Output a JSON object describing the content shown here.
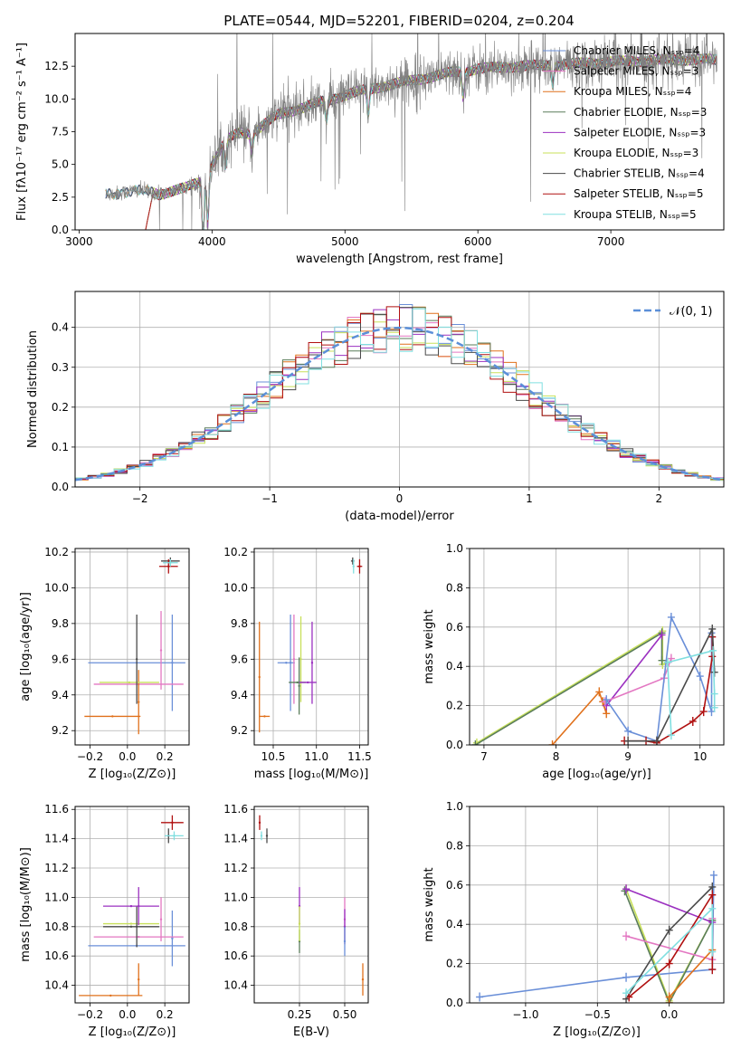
{
  "figure_title": "PLATE=0544, MJD=52201, FIBERID=0204, z=0.204",
  "colors": {
    "Chabrier MILES": "#6a8fd8",
    "Salpeter MILES": "#e377c2",
    "Kroupa MILES": "#e0701b",
    "Chabrier ELODIE": "#5a7d5a",
    "Salpeter ELODIE": "#9b30c0",
    "Kroupa ELODIE": "#c8e05a",
    "Chabrier STELIB": "#4a4a4a",
    "Salpeter STELIB": "#b01010",
    "Kroupa STELIB": "#80dfe0",
    "data": "#808080",
    "gauss": "#5b8fd8",
    "grid": "#b0b0b0"
  },
  "chart_data": [
    {
      "type": "line",
      "id": "spectrum",
      "title": "PLATE=0544, MJD=52201, FIBERID=0204, z=0.204",
      "xlabel": "wavelength [Angstrom, rest frame]",
      "ylabel": "Flux [fλ10⁻¹⁷ erg cm⁻² s⁻¹ A⁻¹]",
      "xlim": [
        2970,
        7850
      ],
      "ylim": [
        0,
        15
      ],
      "xticks": [
        3000,
        4000,
        5000,
        6000,
        7000
      ],
      "yticks": [
        0.0,
        2.5,
        5.0,
        7.5,
        10.0,
        12.5
      ],
      "legend_position": "top-right",
      "legend": [
        "Chabrier MILES, N_SSP=4",
        "Salpeter MILES, N_SSP=3",
        "Kroupa MILES, N_SSP=4",
        "Chabrier ELODIE, N_SSP=3",
        "Salpeter ELODIE, N_SSP=3",
        "Kroupa ELODIE, N_SSP=3",
        "Chabrier STELIB, N_SSP=4",
        "Salpeter STELIB, N_SSP=5",
        "Kroupa STELIB, N_SSP=5"
      ],
      "continuum": {
        "x": [
          3200,
          3300,
          3400,
          3500,
          3600,
          3700,
          3800,
          3900,
          4000,
          4100,
          4200,
          4300,
          4500,
          4700,
          5000,
          5200,
          5500,
          5800,
          6000,
          6300,
          6600,
          6900,
          7200,
          7500,
          7800
        ],
        "y": [
          2.7,
          2.8,
          3.0,
          3.0,
          2.7,
          3.0,
          3.2,
          3.6,
          5.0,
          6.8,
          7.4,
          7.4,
          8.8,
          9.4,
          10.3,
          10.8,
          11.4,
          12.0,
          12.3,
          12.5,
          12.6,
          12.8,
          12.9,
          13.0,
          13.0
        ]
      },
      "model_start": [
        3200,
        3500,
        3200,
        3500,
        3500,
        3500,
        3200,
        3500,
        3200
      ]
    },
    {
      "type": "histogram",
      "id": "residuals",
      "xlabel": "(data-model)/error",
      "ylabel": "Normed distribution",
      "xlim": [
        -2.5,
        2.5
      ],
      "ylim": [
        0,
        0.49
      ],
      "xticks": [
        -2,
        -1,
        0,
        1,
        2
      ],
      "yticks": [
        0.0,
        0.1,
        0.2,
        0.3,
        0.4
      ],
      "legend": [
        "𝒩(0, 1)"
      ],
      "legend_position": "top-right",
      "bin_width": 0.1,
      "bin_start": -2.5,
      "gaussian": {
        "mean": 0,
        "sigma": 1
      }
    },
    {
      "type": "errorbar",
      "id": "age_vs_Z",
      "xlabel": "Z [log₁₀(Z/Z⊙)]",
      "ylabel": "age  [log₁₀(age/yr)]",
      "xlim": [
        -0.28,
        0.33
      ],
      "ylim": [
        9.12,
        10.22
      ],
      "xticks": [
        -0.2,
        0.0,
        0.2
      ],
      "yticks": [
        9.2,
        9.4,
        9.6,
        9.8,
        10.0,
        10.2
      ],
      "points": [
        {
          "model": "Chabrier MILES",
          "x": 0.05,
          "xerr": 0.26,
          "y": 9.58,
          "yerr": 0.0
        },
        {
          "model": "Chabrier MILES",
          "x": 0.24,
          "xerr": 0.0,
          "y": 9.58,
          "yerr": 0.27
        },
        {
          "model": "Salpeter MILES",
          "x": 0.06,
          "xerr": 0.24,
          "y": 9.46,
          "yerr": 0.0
        },
        {
          "model": "Salpeter MILES",
          "x": 0.18,
          "xerr": 0.0,
          "y": 9.65,
          "yerr": 0.22
        },
        {
          "model": "Kroupa MILES",
          "x": -0.08,
          "xerr": 0.15,
          "y": 9.28,
          "yerr": 0.0
        },
        {
          "model": "Kroupa MILES",
          "x": 0.06,
          "xerr": 0.0,
          "y": 9.36,
          "yerr": 0.18
        },
        {
          "model": "Kroupa ELODIE",
          "x": 0.01,
          "xerr": 0.16,
          "y": 9.47,
          "yerr": 0.0
        },
        {
          "model": "Chabrier STELIB",
          "x": 0.05,
          "xerr": 0.0,
          "y": 9.6,
          "yerr": 0.25
        },
        {
          "model": "Chabrier STELIB",
          "x": 0.23,
          "xerr": 0.05,
          "y": 10.15,
          "yerr": 0.02
        },
        {
          "model": "Salpeter STELIB",
          "x": 0.22,
          "xerr": 0.05,
          "y": 10.12,
          "yerr": 0.04
        },
        {
          "model": "Kroupa STELIB",
          "x": 0.23,
          "xerr": 0.04,
          "y": 10.14,
          "yerr": 0.02
        }
      ]
    },
    {
      "type": "errorbar",
      "id": "age_vs_mass",
      "xlabel": "mass [log₁₀(M/M⊙)]",
      "ylabel": "",
      "xlim": [
        10.28,
        11.6
      ],
      "ylim": [
        9.12,
        10.22
      ],
      "xticks": [
        10.5,
        11.0,
        11.5
      ],
      "yticks": [
        9.2,
        9.4,
        9.6,
        9.8,
        10.0,
        10.2
      ],
      "points": [
        {
          "model": "Kroupa MILES",
          "x": 10.34,
          "xerr": 0.0,
          "y": 9.5,
          "yerr": 0.31
        },
        {
          "model": "Kroupa MILES",
          "x": 10.4,
          "xerr": 0.06,
          "y": 9.28,
          "yerr": 0.0
        },
        {
          "model": "Chabrier MILES",
          "x": 10.7,
          "xerr": 0.0,
          "y": 9.58,
          "yerr": 0.27
        },
        {
          "model": "Chabrier MILES",
          "x": 10.65,
          "xerr": 0.1,
          "y": 9.58,
          "yerr": 0.0
        },
        {
          "model": "Salpeter MILES",
          "x": 10.74,
          "xerr": 0.0,
          "y": 9.6,
          "yerr": 0.25
        },
        {
          "model": "Kroupa ELODIE",
          "x": 10.82,
          "xerr": 0.0,
          "y": 9.6,
          "yerr": 0.24
        },
        {
          "model": "Chabrier ELODIE",
          "x": 10.8,
          "xerr": 0.0,
          "y": 9.45,
          "yerr": 0.16
        },
        {
          "model": "Chabrier ELODIE",
          "x": 10.78,
          "xerr": 0.1,
          "y": 9.47,
          "yerr": 0.0
        },
        {
          "model": "Salpeter ELODIE",
          "x": 10.95,
          "xerr": 0.0,
          "y": 9.58,
          "yerr": 0.23
        },
        {
          "model": "Salpeter ELODIE",
          "x": 10.9,
          "xerr": 0.1,
          "y": 9.47,
          "yerr": 0.0
        },
        {
          "model": "Chabrier STELIB",
          "x": 11.42,
          "xerr": 0.02,
          "y": 10.15,
          "yerr": 0.02
        },
        {
          "model": "Kroupa STELIB",
          "x": 11.43,
          "xerr": 0.0,
          "y": 10.12,
          "yerr": 0.04
        },
        {
          "model": "Salpeter STELIB",
          "x": 11.5,
          "xerr": 0.03,
          "y": 10.12,
          "yerr": 0.04
        }
      ]
    },
    {
      "type": "line",
      "id": "massweight_vs_age",
      "xlabel": "age  [log₁₀(age/yr)]",
      "ylabel": "mass weight",
      "xlim": [
        6.8,
        10.33
      ],
      "ylim": [
        0,
        1
      ],
      "xticks": [
        7,
        8,
        9,
        10
      ],
      "yticks": [
        0.0,
        0.2,
        0.4,
        0.6,
        0.8,
        1.0
      ],
      "series": [
        {
          "model": "Kroupa ELODIE",
          "x": [
            6.9,
            9.48,
            9.48,
            9.55
          ],
          "y": [
            0.01,
            0.58,
            0.41,
            0.42
          ]
        },
        {
          "model": "Chabrier ELODIE",
          "x": [
            6.88,
            9.47,
            9.47
          ],
          "y": [
            0.0,
            0.57,
            0.43
          ]
        },
        {
          "model": "Kroupa MILES",
          "x": [
            7.95,
            8.6,
            8.7,
            8.65
          ],
          "y": [
            0.0,
            0.27,
            0.16,
            0.22
          ]
        },
        {
          "model": "Salpeter ELODIE",
          "x": [
            8.7,
            9.47
          ],
          "y": [
            0.2,
            0.56
          ]
        },
        {
          "model": "Salpeter MILES",
          "x": [
            8.68,
            9.5,
            9.6
          ],
          "y": [
            0.22,
            0.34,
            0.44
          ]
        },
        {
          "model": "Chabrier MILES",
          "x": [
            8.7,
            9.0,
            9.4,
            9.6,
            10.0,
            10.16,
            10.16
          ],
          "y": [
            0.23,
            0.07,
            0.02,
            0.65,
            0.35,
            0.17,
            0.57
          ]
        },
        {
          "model": "Salpeter STELIB",
          "x": [
            8.95,
            9.25,
            9.4,
            9.9,
            10.05,
            10.17,
            10.17
          ],
          "y": [
            0.02,
            0.02,
            0.01,
            0.12,
            0.17,
            0.45,
            0.55
          ]
        },
        {
          "model": "Chabrier STELIB",
          "x": [
            9.0,
            9.4,
            10.17,
            10.2
          ],
          "y": [
            0.02,
            0.02,
            0.59,
            0.37
          ]
        },
        {
          "model": "Kroupa STELIB",
          "x": [
            9.6,
            9.55,
            10.18,
            10.2,
            10.2
          ],
          "y": [
            0.05,
            0.42,
            0.48,
            0.26,
            0.19
          ]
        }
      ]
    },
    {
      "type": "errorbar",
      "id": "mass_vs_Z",
      "xlabel": "Z [log₁₀(Z/Z⊙)]",
      "ylabel": "mass [log₁₀(M/M⊙)]",
      "xlim": [
        -0.28,
        0.33
      ],
      "ylim": [
        10.28,
        11.62
      ],
      "xticks": [
        -0.2,
        0.0,
        0.2
      ],
      "yticks": [
        10.4,
        10.6,
        10.8,
        11.0,
        11.2,
        11.4,
        11.6
      ],
      "points": [
        {
          "model": "Kroupa MILES",
          "x": -0.09,
          "xerr": 0.17,
          "y": 10.33,
          "yerr": 0.0
        },
        {
          "model": "Kroupa MILES",
          "x": 0.06,
          "xerr": 0.0,
          "y": 10.44,
          "yerr": 0.11
        },
        {
          "model": "Chabrier MILES",
          "x": 0.05,
          "xerr": 0.26,
          "y": 10.67,
          "yerr": 0.0
        },
        {
          "model": "Chabrier MILES",
          "x": 0.24,
          "xerr": 0.0,
          "y": 10.72,
          "yerr": 0.19
        },
        {
          "model": "Salpeter MILES",
          "x": 0.06,
          "xerr": 0.24,
          "y": 10.73,
          "yerr": 0.0
        },
        {
          "model": "Salpeter MILES",
          "x": 0.18,
          "xerr": 0.0,
          "y": 10.85,
          "yerr": 0.15
        },
        {
          "model": "Kroupa ELODIE",
          "x": 0.02,
          "xerr": 0.15,
          "y": 10.82,
          "yerr": 0.0
        },
        {
          "model": "Chabrier STELIB",
          "x": 0.02,
          "xerr": 0.15,
          "y": 10.8,
          "yerr": 0.0
        },
        {
          "model": "Chabrier STELIB",
          "x": 0.05,
          "xerr": 0.0,
          "y": 10.8,
          "yerr": 0.14
        },
        {
          "model": "Salpeter ELODIE",
          "x": 0.02,
          "xerr": 0.15,
          "y": 10.94,
          "yerr": 0.0
        },
        {
          "model": "Salpeter ELODIE",
          "x": 0.06,
          "xerr": 0.0,
          "y": 10.94,
          "yerr": 0.13
        },
        {
          "model": "Salpeter STELIB",
          "x": 0.24,
          "xerr": 0.06,
          "y": 11.51,
          "yerr": 0.05
        },
        {
          "model": "Chabrier STELIB",
          "x": 0.22,
          "xerr": 0.0,
          "y": 11.42,
          "yerr": 0.05
        },
        {
          "model": "Kroupa STELIB",
          "x": 0.25,
          "xerr": 0.05,
          "y": 11.42,
          "yerr": 0.03
        }
      ]
    },
    {
      "type": "errorbar",
      "id": "mass_vs_ebv",
      "xlabel": "E(B-V)",
      "ylabel": "",
      "xlim": [
        0.0,
        0.63
      ],
      "ylim": [
        10.28,
        11.62
      ],
      "xticks": [
        0.25,
        0.5
      ],
      "yticks": [
        10.4,
        10.6,
        10.8,
        11.0,
        11.2,
        11.4,
        11.6
      ],
      "points": [
        {
          "model": "Salpeter STELIB",
          "x": 0.03,
          "xerr": 0.0,
          "y": 11.51,
          "yerr": 0.05
        },
        {
          "model": "Kroupa STELIB",
          "x": 0.04,
          "xerr": 0.0,
          "y": 11.42,
          "yerr": 0.03
        },
        {
          "model": "Chabrier STELIB",
          "x": 0.07,
          "xerr": 0.0,
          "y": 11.42,
          "yerr": 0.05
        },
        {
          "model": "Salpeter ELODIE",
          "x": 0.25,
          "xerr": 0.0,
          "y": 10.94,
          "yerr": 0.13
        },
        {
          "model": "Chabrier ELODIE",
          "x": 0.25,
          "xerr": 0.0,
          "y": 10.7,
          "yerr": 0.08
        },
        {
          "model": "Kroupa ELODIE",
          "x": 0.25,
          "xerr": 0.0,
          "y": 10.82,
          "yerr": 0.12
        },
        {
          "model": "Salpeter MILES",
          "x": 0.5,
          "xerr": 0.0,
          "y": 10.85,
          "yerr": 0.15
        },
        {
          "model": "Salpeter ELODIE",
          "x": 0.5,
          "xerr": 0.0,
          "y": 10.8,
          "yerr": 0.12
        },
        {
          "model": "Chabrier MILES",
          "x": 0.5,
          "xerr": 0.0,
          "y": 10.7,
          "yerr": 0.1
        },
        {
          "model": "Kroupa MILES",
          "x": 0.6,
          "xerr": 0.0,
          "y": 10.44,
          "yerr": 0.11
        }
      ]
    },
    {
      "type": "line",
      "id": "massweight_vs_Z",
      "xlabel": "Z [log₁₀(Z/Z⊙)]",
      "ylabel": "mass weight",
      "xlim": [
        -1.39,
        0.38
      ],
      "ylim": [
        0,
        1
      ],
      "xticks": [
        -1.0,
        -0.5,
        0.0
      ],
      "yticks": [
        0.0,
        0.2,
        0.4,
        0.6,
        0.8,
        1.0
      ],
      "series": [
        {
          "model": "Chabrier MILES",
          "x": [
            -1.32,
            -0.3,
            0.3,
            0.31
          ],
          "y": [
            0.03,
            0.13,
            0.17,
            0.65
          ]
        },
        {
          "model": "Kroupa ELODIE",
          "x": [
            -0.3,
            0.0,
            0.3
          ],
          "y": [
            0.58,
            0.01,
            0.42
          ]
        },
        {
          "model": "Chabrier ELODIE",
          "x": [
            -0.31,
            0.0,
            0.3
          ],
          "y": [
            0.57,
            0.0,
            0.42
          ]
        },
        {
          "model": "Salpeter ELODIE",
          "x": [
            -0.3,
            0.3
          ],
          "y": [
            0.58,
            0.41
          ]
        },
        {
          "model": "Salpeter MILES",
          "x": [
            -0.3,
            0.3,
            0.3
          ],
          "y": [
            0.34,
            0.22,
            0.43
          ]
        },
        {
          "model": "Kroupa MILES",
          "x": [
            0.0,
            0.0,
            0.3
          ],
          "y": [
            0.0,
            0.03,
            0.27
          ]
        },
        {
          "model": "Chabrier STELIB",
          "x": [
            -0.3,
            0.0,
            0.3
          ],
          "y": [
            0.02,
            0.37,
            0.59
          ]
        },
        {
          "model": "Salpeter STELIB",
          "x": [
            -0.28,
            0.0,
            0.3,
            0.3
          ],
          "y": [
            0.03,
            0.2,
            0.55,
            0.17
          ]
        },
        {
          "model": "Kroupa STELIB",
          "x": [
            -0.3,
            0.3,
            0.3
          ],
          "y": [
            0.05,
            0.48,
            0.26
          ]
        }
      ]
    }
  ]
}
